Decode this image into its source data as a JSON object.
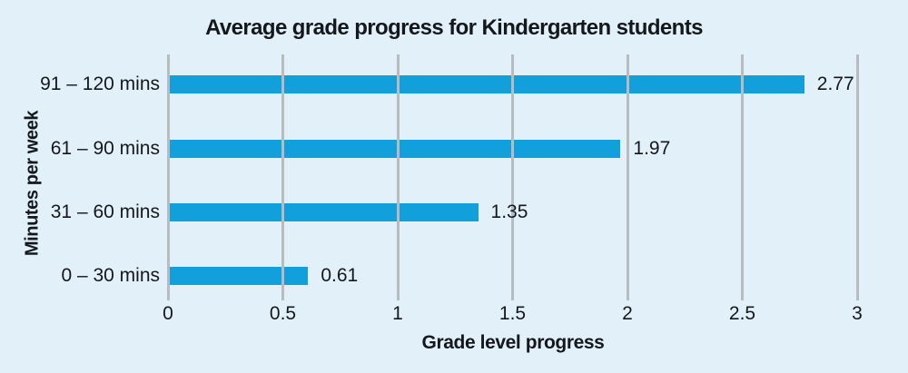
{
  "title": "Average grade progress for Kindergarten students",
  "chart_data": {
    "type": "bar",
    "orientation": "horizontal",
    "title": "Average grade progress for Kindergarten students",
    "xlabel": "Grade level progress",
    "ylabel": "Minutes per week",
    "categories": [
      "91 – 120 mins",
      "61 – 90 mins",
      "31 – 60 mins",
      "0 – 30 mins"
    ],
    "values": [
      2.77,
      1.97,
      1.35,
      0.61
    ],
    "value_labels": [
      "2.77",
      "1.97",
      "1.35",
      "0.61"
    ],
    "xlim": [
      0,
      3
    ],
    "xticks": [
      0,
      0.5,
      1,
      1.5,
      2,
      2.5,
      3
    ],
    "xtick_labels": [
      "0",
      "0.5",
      "1",
      "1.5",
      "2",
      "2.5",
      "3"
    ],
    "grid": "vertical-gridlines-over-bars",
    "legend": "none",
    "colors": {
      "bar": "#12a0dc",
      "gridline": "#b9bcbe",
      "background": "#e2f0f9",
      "text": "#14181d"
    }
  }
}
